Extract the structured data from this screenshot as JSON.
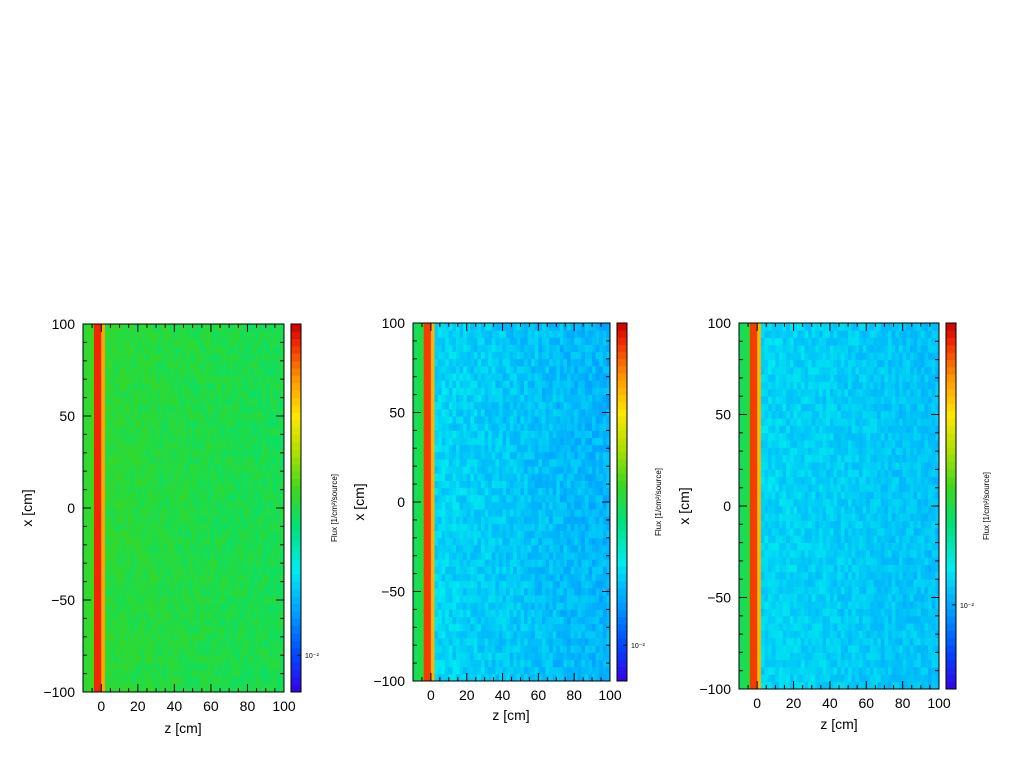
{
  "chart_data": [
    {
      "type": "heatmap",
      "xlabel": "z [cm]",
      "ylabel": "x [cm]",
      "colorbar_label": "Flux [1/cm²/source]",
      "colorbar_tick": "10⁻²",
      "xlim": [
        -10,
        100
      ],
      "ylim": [
        -100,
        100
      ],
      "xticks": [
        0,
        20,
        40,
        60,
        80,
        100
      ],
      "yticks": [
        -100,
        -50,
        0,
        50,
        100
      ],
      "x_tick_labels": [
        "0",
        "20",
        "40",
        "60",
        "80",
        "100"
      ],
      "y_tick_labels": [
        "−100",
        "−50",
        "0",
        "50",
        "100"
      ],
      "colorscale": "rainbow",
      "field": {
        "left_region": {
          "z_range": [
            -10,
            -4
          ],
          "level": 0.56
        },
        "peak": {
          "z_center": -1.5,
          "level": 0.95
        },
        "bulk_level": 0.52,
        "bulk_trend_per_100cm": -0.03,
        "noise": 0.025
      },
      "colorbar_tick_level": 0.1
    },
    {
      "type": "heatmap",
      "xlabel": "z [cm]",
      "ylabel": "x [cm]",
      "colorbar_label": "Flux [1/cm²/source]",
      "colorbar_tick": "10⁻²",
      "xlim": [
        -10,
        100
      ],
      "ylim": [
        -100,
        100
      ],
      "xticks": [
        0,
        20,
        40,
        60,
        80,
        100
      ],
      "yticks": [
        -100,
        -50,
        0,
        50,
        100
      ],
      "x_tick_labels": [
        "0",
        "20",
        "40",
        "60",
        "80",
        "100"
      ],
      "y_tick_labels": [
        "−100",
        "−50",
        "0",
        "50",
        "100"
      ],
      "colorscale": "rainbow",
      "field": {
        "left_region": {
          "z_range": [
            -10,
            -4
          ],
          "level": 0.52
        },
        "peak": {
          "z_center": -1.5,
          "level": 0.93
        },
        "bulk_level": 0.3,
        "bulk_trend_per_100cm": -0.05,
        "noise": 0.035
      },
      "colorbar_tick_level": 0.1
    },
    {
      "type": "heatmap",
      "xlabel": "z [cm]",
      "ylabel": "x [cm]",
      "colorbar_label": "Flux [1/cm²/source]",
      "colorbar_tick": "10⁻²",
      "xlim": [
        -10,
        100
      ],
      "ylim": [
        -100,
        100
      ],
      "xticks": [
        0,
        20,
        40,
        60,
        80,
        100
      ],
      "yticks": [
        -100,
        -50,
        0,
        50,
        100
      ],
      "x_tick_labels": [
        "0",
        "20",
        "40",
        "60",
        "80",
        "100"
      ],
      "y_tick_labels": [
        "−100",
        "−50",
        "0",
        "50",
        "100"
      ],
      "colorscale": "rainbow",
      "field": {
        "left_region": {
          "z_range": [
            -10,
            -4
          ],
          "level": 0.52
        },
        "peak": {
          "z_center": -1.5,
          "level": 0.93
        },
        "bulk_level": 0.3,
        "bulk_trend_per_100cm": -0.03,
        "noise": 0.03
      },
      "colorbar_tick_level": 0.23
    }
  ]
}
